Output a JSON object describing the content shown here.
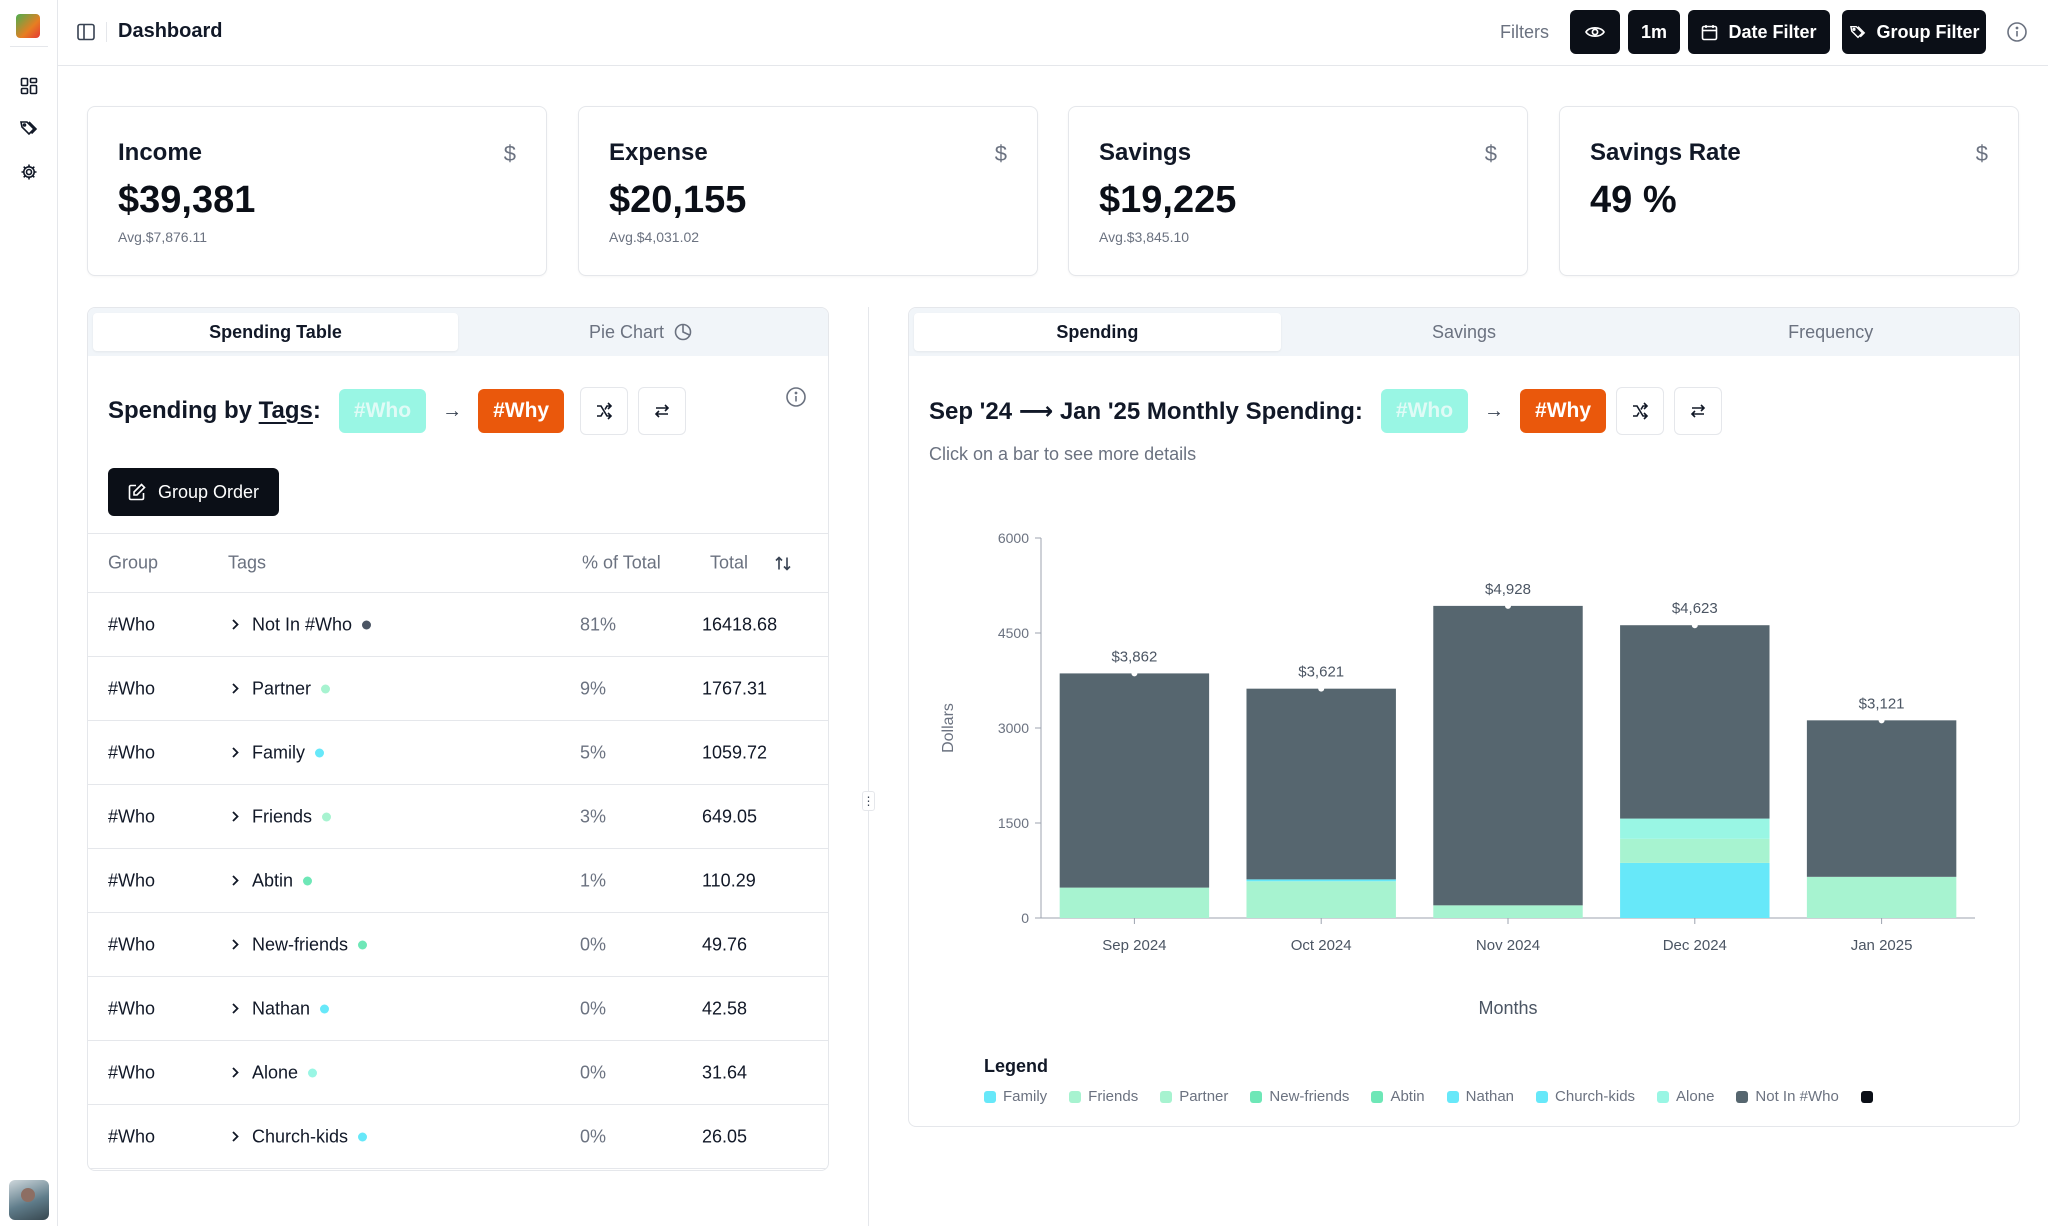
{
  "header": {
    "title": "Dashboard",
    "filters_label": "Filters",
    "period_label": "1m",
    "date_filter_label": "Date Filter",
    "group_filter_label": "Group Filter"
  },
  "kpis": [
    {
      "title": "Income",
      "currency": "$",
      "value": "$39,381",
      "avg": "Avg.$7,876.11"
    },
    {
      "title": "Expense",
      "currency": "$",
      "value": "$20,155",
      "avg": "Avg.$4,031.02"
    },
    {
      "title": "Savings",
      "currency": "$",
      "value": "$19,225",
      "avg": "Avg.$3,845.10"
    },
    {
      "title": "Savings Rate",
      "currency": "$",
      "value": "49 %",
      "avg": ""
    }
  ],
  "left_panel": {
    "tabs": [
      "Spending Table",
      "Pie Chart"
    ],
    "title_prefix": "Spending by ",
    "title_link": "Tags",
    "title_suffix": ":",
    "chip_who": "#Who",
    "chip_why": "#Why",
    "arrow": "→",
    "group_order_label": "Group Order",
    "columns": [
      "Group",
      "Tags",
      "% of Total",
      "Total"
    ],
    "rows": [
      {
        "group": "#Who",
        "tag": "Not In #Who",
        "pct": "81%",
        "total": "16418.68",
        "color": "#4b5563"
      },
      {
        "group": "#Who",
        "tag": "Partner",
        "pct": "9%",
        "total": "1767.31",
        "color": "#a7f3d0"
      },
      {
        "group": "#Who",
        "tag": "Family",
        "pct": "5%",
        "total": "1059.72",
        "color": "#67e8f9"
      },
      {
        "group": "#Who",
        "tag": "Friends",
        "pct": "3%",
        "total": "649.05",
        "color": "#a7f3d0"
      },
      {
        "group": "#Who",
        "tag": "Abtin",
        "pct": "1%",
        "total": "110.29",
        "color": "#6ee7b7"
      },
      {
        "group": "#Who",
        "tag": "New-friends",
        "pct": "0%",
        "total": "49.76",
        "color": "#6ee7b7"
      },
      {
        "group": "#Who",
        "tag": "Nathan",
        "pct": "0%",
        "total": "42.58",
        "color": "#67e8f9"
      },
      {
        "group": "#Who",
        "tag": "Alone",
        "pct": "0%",
        "total": "31.64",
        "color": "#99f6e4"
      },
      {
        "group": "#Who",
        "tag": "Church-kids",
        "pct": "0%",
        "total": "26.05",
        "color": "#67e8f9"
      }
    ]
  },
  "right_panel": {
    "tabs": [
      "Spending",
      "Savings",
      "Frequency"
    ],
    "title": "Sep '24 ⟶ Jan '25  Monthly Spending:",
    "chip_who": "#Who",
    "chip_why": "#Why",
    "arrow": "→",
    "subtitle": "Click on a bar to see more details",
    "legend_title": "Legend"
  },
  "colors": {
    "accent_orange": "#ea580c",
    "accent_teal": "#99f6e4",
    "bar_dark": "#56666f"
  },
  "chart_data": {
    "type": "bar",
    "stacked": true,
    "title": "Sep '24 ⟶ Jan '25 Monthly Spending",
    "xlabel": "Months",
    "ylabel": "Dollars",
    "ylim": [
      0,
      6000
    ],
    "yticks": [
      0,
      1500,
      3000,
      4500,
      6000
    ],
    "categories": [
      "Sep 2024",
      "Oct 2024",
      "Nov 2024",
      "Dec 2024",
      "Jan 2025"
    ],
    "totals_labels": [
      "$3,862",
      "$3,621",
      "$4,928",
      "$4,623",
      "$3,121"
    ],
    "totals": [
      3862,
      3621,
      4928,
      4623,
      3121
    ],
    "series": [
      {
        "name": "Family",
        "color": "#67e8f9",
        "values": [
          0,
          0,
          0,
          870,
          0
        ]
      },
      {
        "name": "Friends",
        "color": "#a7f3d0",
        "values": [
          0,
          0,
          0,
          380,
          0
        ]
      },
      {
        "name": "Partner",
        "color": "#a7f3d0",
        "values": [
          480,
          580,
          200,
          0,
          650
        ]
      },
      {
        "name": "New-friends",
        "color": "#6ee7b7",
        "values": [
          0,
          0,
          0,
          0,
          0
        ]
      },
      {
        "name": "Abtin",
        "color": "#6ee7b7",
        "values": [
          0,
          0,
          0,
          0,
          0
        ]
      },
      {
        "name": "Nathan",
        "color": "#67e8f9",
        "values": [
          0,
          0,
          0,
          0,
          0
        ]
      },
      {
        "name": "Church-kids",
        "color": "#67e8f9",
        "values": [
          0,
          30,
          0,
          0,
          0
        ]
      },
      {
        "name": "Alone",
        "color": "#99f6e4",
        "values": [
          0,
          0,
          0,
          320,
          0
        ]
      },
      {
        "name": "Not In #Who",
        "color": "#56666f",
        "values": [
          3382,
          3011,
          4728,
          3053,
          2471
        ]
      },
      {
        "name": "",
        "color": "#0b0f17",
        "values": [
          0,
          0,
          0,
          0,
          0
        ]
      }
    ]
  }
}
